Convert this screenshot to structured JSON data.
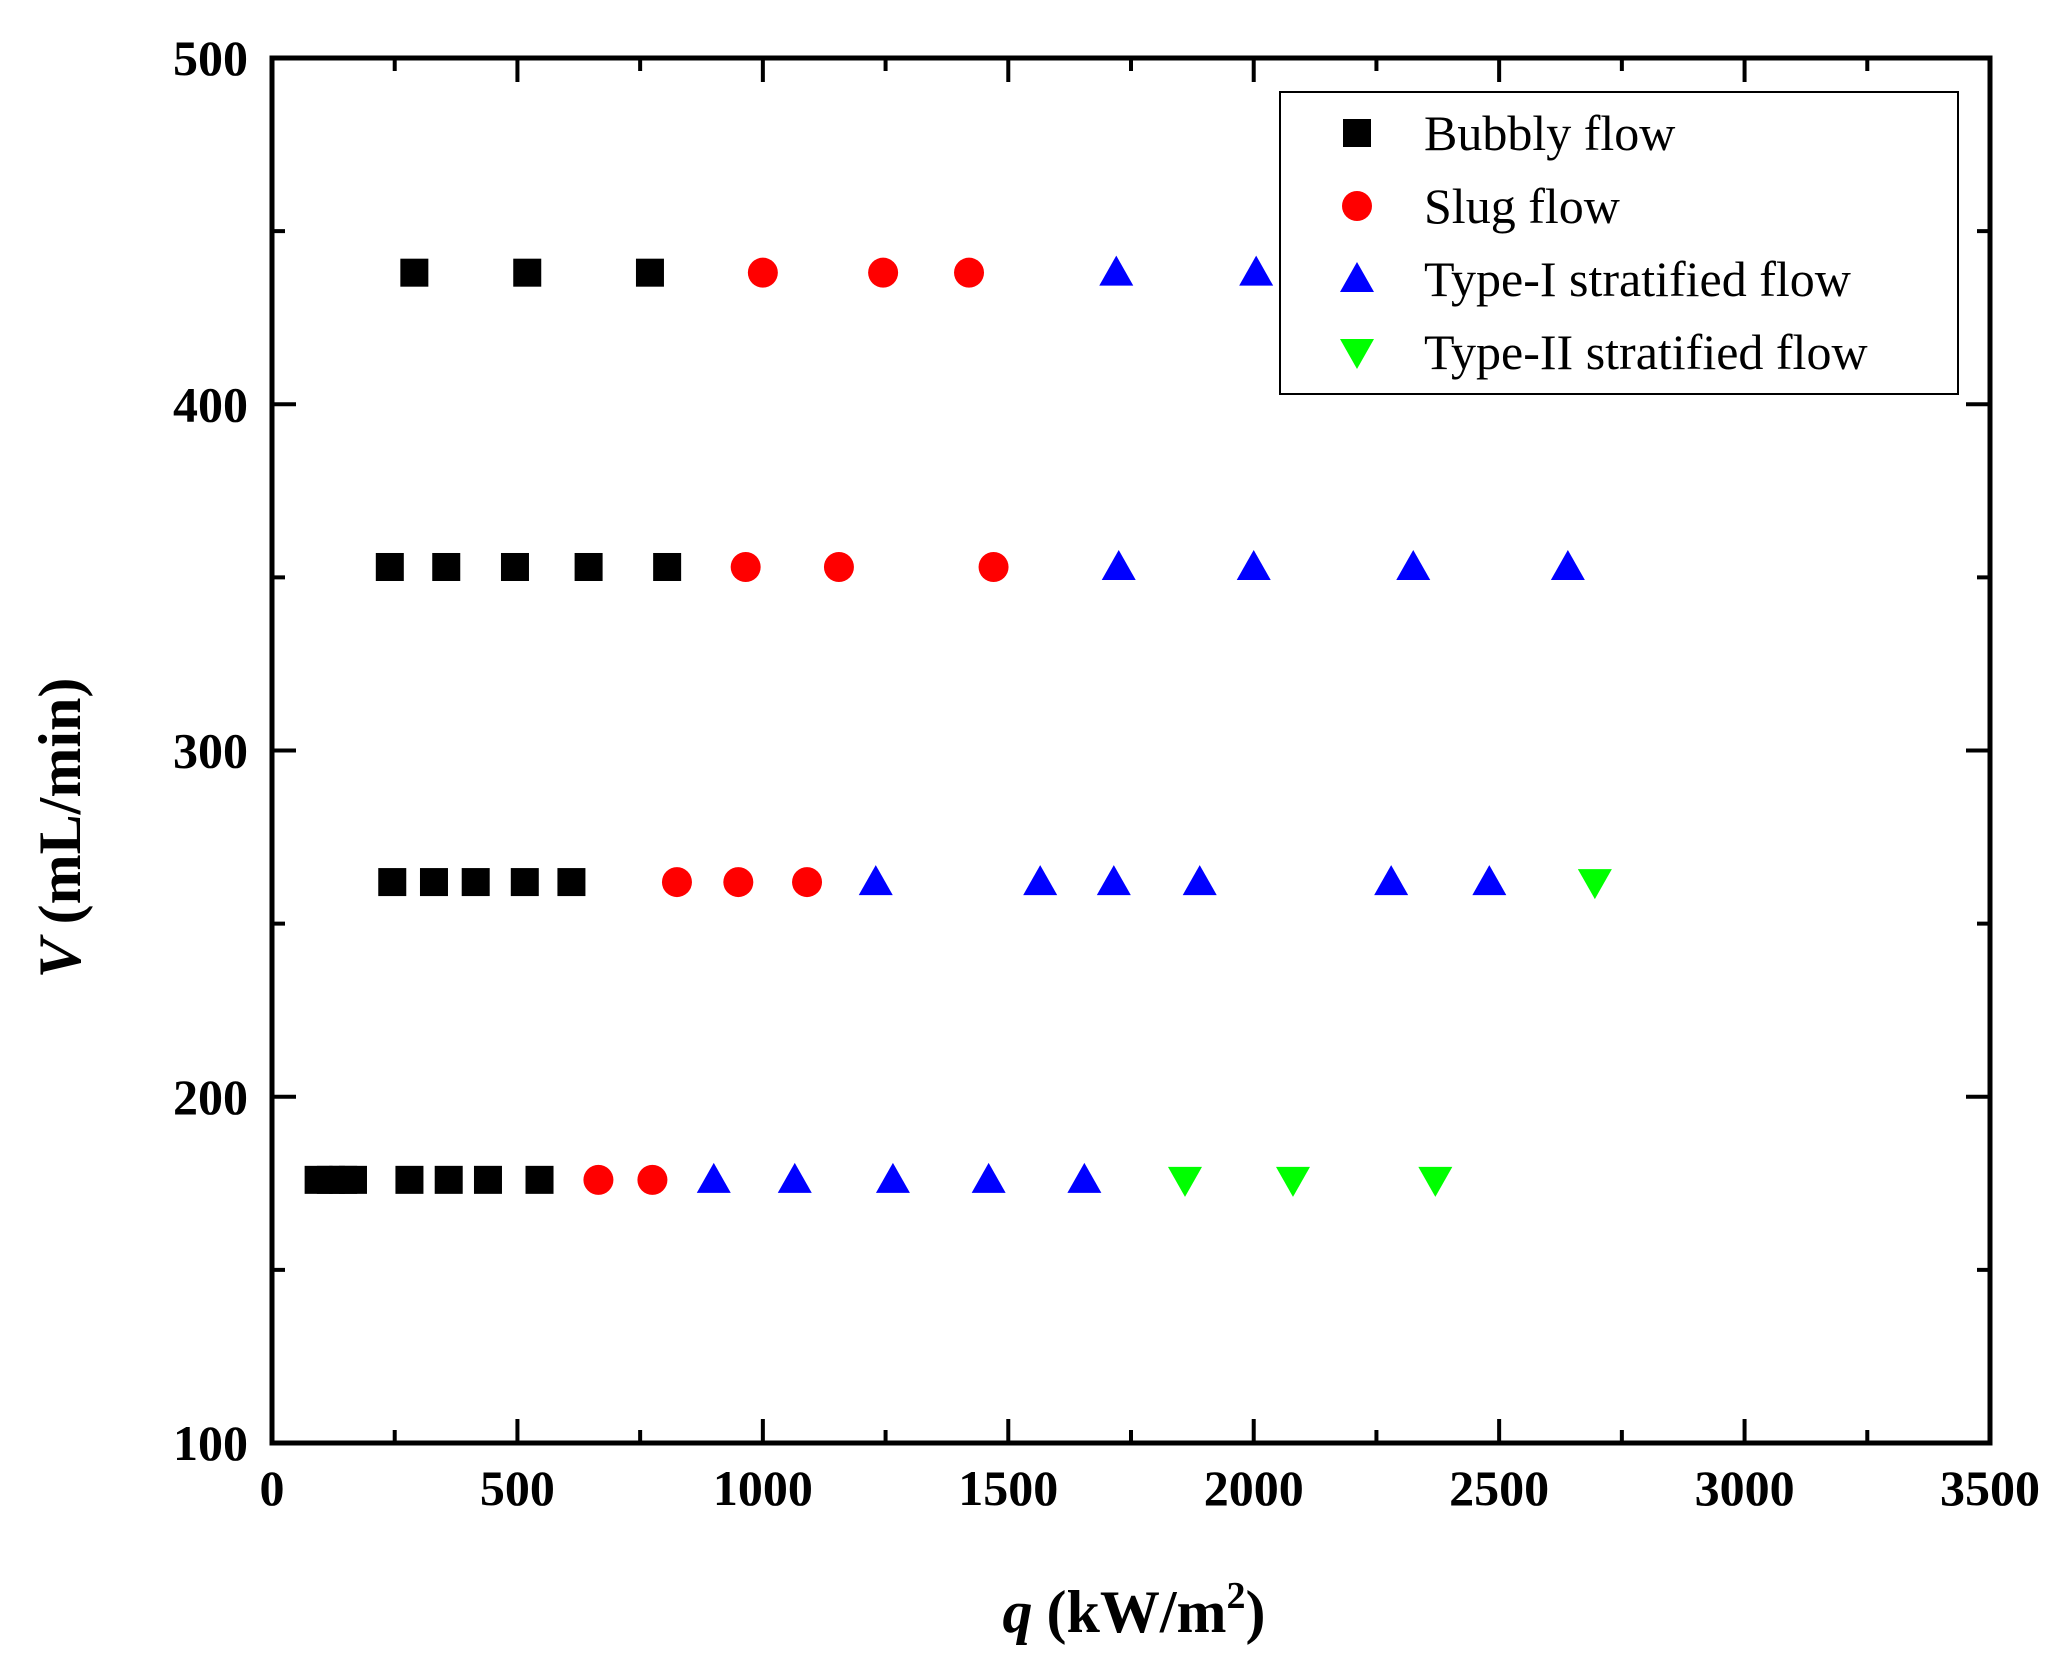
{
  "chart_data": {
    "type": "scatter",
    "title": "",
    "xlabel": {
      "symbol": "q",
      "unit": "(kW/m",
      "exponent": "2",
      "close": ")"
    },
    "ylabel": {
      "symbol": "V",
      "unit": "(mL/min)"
    },
    "xlim": [
      0,
      3500
    ],
    "ylim": [
      100,
      500
    ],
    "xticks": [
      0,
      500,
      1000,
      1500,
      2000,
      2500,
      3000,
      3500
    ],
    "yticks": [
      100,
      200,
      300,
      400,
      500
    ],
    "xtick_labels": [
      "0",
      "500",
      "1000",
      "1500",
      "2000",
      "2500",
      "3000",
      "3500"
    ],
    "ytick_labels": [
      "100",
      "200",
      "300",
      "400",
      "500"
    ],
    "grid": false,
    "legend_position": "top-right",
    "series": [
      {
        "name": "Bubbly flow",
        "marker": "square",
        "color": "#000000",
        "x": [
          290,
          520,
          770,
          240,
          355,
          495,
          645,
          805,
          245,
          330,
          415,
          515,
          610,
          95,
          120,
          145,
          165,
          280,
          360,
          440,
          545
        ],
        "y": [
          438,
          438,
          438,
          353,
          353,
          353,
          353,
          353,
          262,
          262,
          262,
          262,
          262,
          176,
          176,
          176,
          176,
          176,
          176,
          176,
          176
        ]
      },
      {
        "name": "Slug flow",
        "marker": "circle",
        "color": "#ff0000",
        "x": [
          1000,
          1245,
          1420,
          965,
          1155,
          1470,
          825,
          950,
          1090,
          665,
          775
        ],
        "y": [
          438,
          438,
          438,
          353,
          353,
          353,
          262,
          262,
          262,
          176,
          176
        ]
      },
      {
        "name": "Type-I stratified flow",
        "marker": "triangle-up",
        "color": "#0000ff",
        "x": [
          1720,
          2005,
          1725,
          2000,
          2325,
          2640,
          1230,
          1565,
          1715,
          1890,
          2280,
          2480,
          900,
          1065,
          1265,
          1460,
          1655
        ],
        "y": [
          438,
          438,
          353,
          353,
          353,
          353,
          262,
          262,
          262,
          262,
          262,
          262,
          176,
          176,
          176,
          176,
          176
        ]
      },
      {
        "name": "Type-II stratified flow",
        "marker": "triangle-down",
        "color": "#00ff00",
        "x": [
          2695,
          1860,
          2080,
          2370
        ],
        "y": [
          262,
          176,
          176,
          176
        ]
      }
    ]
  }
}
